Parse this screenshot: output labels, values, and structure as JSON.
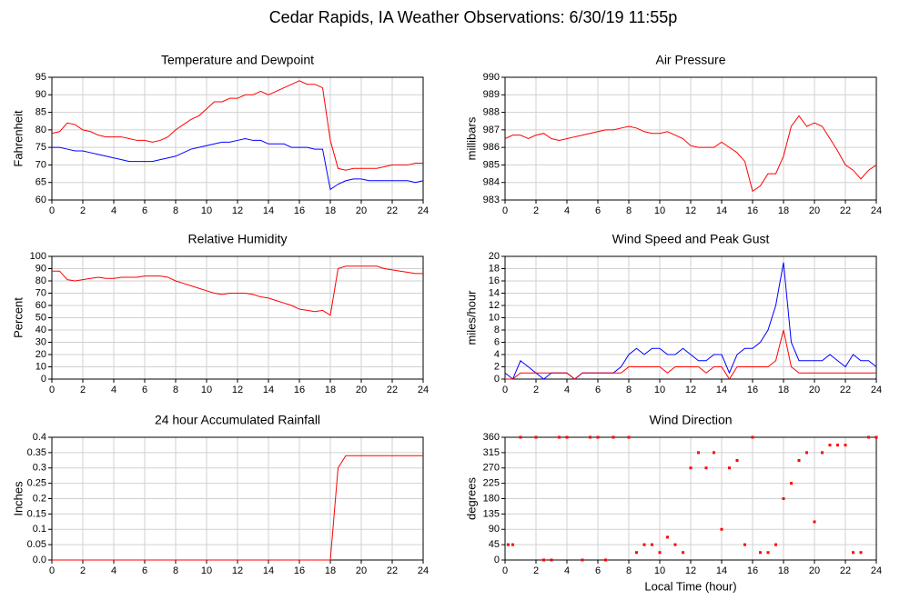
{
  "title": "Cedar Rapids, IA Weather Observations: 6/30/19 11:55p",
  "chart_data": [
    {
      "type": "line",
      "title": "Temperature and Dewpoint",
      "ylabel": "Fahrenheit",
      "x": [
        0,
        0.5,
        1,
        1.5,
        2,
        2.5,
        3,
        3.5,
        4,
        4.5,
        5,
        5.5,
        6,
        6.5,
        7,
        7.5,
        8,
        8.5,
        9,
        9.5,
        10,
        10.5,
        11,
        11.5,
        12,
        12.5,
        13,
        13.5,
        14,
        14.5,
        15,
        15.5,
        16,
        16.5,
        17,
        17.5,
        18,
        18.5,
        19,
        19.5,
        20,
        20.5,
        21,
        21.5,
        22,
        22.5,
        23,
        23.5,
        24
      ],
      "series": [
        {
          "color": "#ff0000",
          "values": [
            79,
            79.5,
            82,
            81.5,
            80,
            79.5,
            78.5,
            78,
            78,
            78,
            77.5,
            77,
            77,
            76.5,
            77,
            78,
            80,
            81.5,
            83,
            84,
            86,
            88,
            88,
            89,
            89,
            90,
            90,
            91,
            90,
            91,
            92,
            93,
            94,
            93,
            93,
            92,
            77,
            69,
            68.5,
            69,
            69,
            69,
            69,
            69.5,
            70,
            70,
            70,
            70.5,
            70.5
          ]
        },
        {
          "color": "#0000ff",
          "values": [
            75,
            75,
            74.5,
            74,
            74,
            73.5,
            73,
            72.5,
            72,
            71.5,
            71,
            71,
            71,
            71,
            71.5,
            72,
            72.5,
            73.5,
            74.5,
            75,
            75.5,
            76,
            76.5,
            76.5,
            77,
            77.5,
            77,
            77,
            76,
            76,
            76,
            75,
            75,
            75,
            74.5,
            74.5,
            63,
            64.5,
            65.5,
            66,
            66,
            65.5,
            65.5,
            65.5,
            65.5,
            65.5,
            65.5,
            65,
            65.5
          ]
        }
      ],
      "xlim": [
        0,
        24
      ],
      "xticks": [
        0,
        2,
        4,
        6,
        8,
        10,
        12,
        14,
        16,
        18,
        20,
        22,
        24
      ],
      "ylim": [
        60,
        95
      ],
      "yticks": [
        60,
        65,
        70,
        75,
        80,
        85,
        90,
        95
      ],
      "grid": true
    },
    {
      "type": "line",
      "title": "Air Pressure",
      "ylabel": "millibars",
      "x": [
        0,
        0.5,
        1,
        1.5,
        2,
        2.5,
        3,
        3.5,
        4,
        4.5,
        5,
        5.5,
        6,
        6.5,
        7,
        7.5,
        8,
        8.5,
        9,
        9.5,
        10,
        10.5,
        11,
        11.5,
        12,
        12.5,
        13,
        13.5,
        14,
        14.5,
        15,
        15.5,
        16,
        16.5,
        17,
        17.5,
        18,
        18.5,
        19,
        19.5,
        20,
        20.5,
        21,
        21.5,
        22,
        22.5,
        23,
        23.5,
        24
      ],
      "series": [
        {
          "color": "#ff0000",
          "values": [
            986.5,
            986.7,
            986.7,
            986.5,
            986.7,
            986.8,
            986.5,
            986.4,
            986.5,
            986.6,
            986.7,
            986.8,
            986.9,
            987,
            987,
            987.1,
            987.2,
            987.1,
            986.9,
            986.8,
            986.8,
            986.9,
            986.7,
            986.5,
            986.1,
            986,
            986,
            986,
            986.3,
            986,
            985.7,
            985.2,
            983.5,
            983.8,
            984.5,
            984.5,
            985.5,
            987.2,
            987.8,
            987.2,
            987.4,
            987.2,
            986.5,
            985.8,
            985,
            984.7,
            984.2,
            984.7,
            985
          ]
        }
      ],
      "xlim": [
        0,
        24
      ],
      "xticks": [
        0,
        2,
        4,
        6,
        8,
        10,
        12,
        14,
        16,
        18,
        20,
        22,
        24
      ],
      "ylim": [
        983,
        990
      ],
      "yticks": [
        983,
        984,
        985,
        986,
        987,
        988,
        989,
        990
      ],
      "grid": true
    },
    {
      "type": "line",
      "title": "Relative Humidity",
      "ylabel": "Percent",
      "x": [
        0,
        0.5,
        1,
        1.5,
        2,
        2.5,
        3,
        3.5,
        4,
        4.5,
        5,
        5.5,
        6,
        6.5,
        7,
        7.5,
        8,
        8.5,
        9,
        9.5,
        10,
        10.5,
        11,
        11.5,
        12,
        12.5,
        13,
        13.5,
        14,
        14.5,
        15,
        15.5,
        16,
        16.5,
        17,
        17.5,
        18,
        18.5,
        19,
        19.5,
        20,
        20.5,
        21,
        21.5,
        22,
        22.5,
        23,
        23.5,
        24
      ],
      "series": [
        {
          "color": "#ff0000",
          "values": [
            88,
            88,
            81,
            80,
            81,
            82,
            83,
            82,
            82,
            83,
            83,
            83,
            84,
            84,
            84,
            83,
            80,
            78,
            76,
            74,
            72,
            70,
            69,
            70,
            70,
            70,
            69,
            67,
            66,
            64,
            62,
            60,
            57,
            56,
            55,
            56,
            52,
            90,
            92,
            92,
            92,
            92,
            92,
            90,
            89,
            88,
            87,
            86,
            86
          ]
        }
      ],
      "xlim": [
        0,
        24
      ],
      "xticks": [
        0,
        2,
        4,
        6,
        8,
        10,
        12,
        14,
        16,
        18,
        20,
        22,
        24
      ],
      "ylim": [
        0,
        100
      ],
      "yticks": [
        0,
        10,
        20,
        30,
        40,
        50,
        60,
        70,
        80,
        90,
        100
      ],
      "grid": true
    },
    {
      "type": "line",
      "title": "Wind Speed and Peak Gust",
      "ylabel": "miles/hour",
      "x": [
        0,
        0.5,
        1,
        1.5,
        2,
        2.5,
        3,
        3.5,
        4,
        4.5,
        5,
        5.5,
        6,
        6.5,
        7,
        7.5,
        8,
        8.5,
        9,
        9.5,
        10,
        10.5,
        11,
        11.5,
        12,
        12.5,
        13,
        13.5,
        14,
        14.5,
        15,
        15.5,
        16,
        16.5,
        17,
        17.5,
        18,
        18.5,
        19,
        19.5,
        20,
        20.5,
        21,
        21.5,
        22,
        22.5,
        23,
        23.5,
        24
      ],
      "series": [
        {
          "color": "#0000ff",
          "values": [
            1,
            0,
            3,
            2,
            1,
            0,
            1,
            1,
            1,
            0,
            1,
            1,
            1,
            1,
            1,
            2,
            4,
            5,
            4,
            5,
            5,
            4,
            4,
            5,
            4,
            3,
            3,
            4,
            4,
            1,
            4,
            5,
            5,
            6,
            8,
            12,
            19,
            6,
            3,
            3,
            3,
            3,
            4,
            3,
            2,
            4,
            3,
            3,
            2
          ]
        },
        {
          "color": "#ff0000",
          "values": [
            0,
            0,
            1,
            1,
            1,
            1,
            1,
            1,
            1,
            0,
            1,
            1,
            1,
            1,
            1,
            1,
            2,
            2,
            2,
            2,
            2,
            1,
            2,
            2,
            2,
            2,
            1,
            2,
            2,
            0,
            2,
            2,
            2,
            2,
            2,
            3,
            8,
            2,
            1,
            1,
            1,
            1,
            1,
            1,
            1,
            1,
            1,
            1,
            1
          ]
        }
      ],
      "xlim": [
        0,
        24
      ],
      "xticks": [
        0,
        2,
        4,
        6,
        8,
        10,
        12,
        14,
        16,
        18,
        20,
        22,
        24
      ],
      "ylim": [
        0,
        20
      ],
      "yticks": [
        0,
        2,
        4,
        6,
        8,
        10,
        12,
        14,
        16,
        18,
        20
      ],
      "grid": true
    },
    {
      "type": "line",
      "title": "24 hour Accumulated Rainfall",
      "ylabel": "Inches",
      "x": [
        0,
        0.5,
        1,
        1.5,
        2,
        2.5,
        3,
        3.5,
        4,
        4.5,
        5,
        5.5,
        6,
        6.5,
        7,
        7.5,
        8,
        8.5,
        9,
        9.5,
        10,
        10.5,
        11,
        11.5,
        12,
        12.5,
        13,
        13.5,
        14,
        14.5,
        15,
        15.5,
        16,
        16.5,
        17,
        17.5,
        18,
        18.5,
        19,
        19.5,
        20,
        20.5,
        21,
        21.5,
        22,
        22.5,
        23,
        23.5,
        24
      ],
      "series": [
        {
          "color": "#ff0000",
          "values": [
            0,
            0,
            0,
            0,
            0,
            0,
            0,
            0,
            0,
            0,
            0,
            0,
            0,
            0,
            0,
            0,
            0,
            0,
            0,
            0,
            0,
            0,
            0,
            0,
            0,
            0,
            0,
            0,
            0,
            0,
            0,
            0,
            0,
            0,
            0,
            0,
            0,
            0.3,
            0.34,
            0.34,
            0.34,
            0.34,
            0.34,
            0.34,
            0.34,
            0.34,
            0.34,
            0.34,
            0.34
          ]
        }
      ],
      "xlim": [
        0,
        24
      ],
      "xticks": [
        0,
        2,
        4,
        6,
        8,
        10,
        12,
        14,
        16,
        18,
        20,
        22,
        24
      ],
      "ylim": [
        0,
        0.4
      ],
      "yticks": [
        {
          "value": 0,
          "label": "0.0"
        },
        0.05,
        0.1,
        0.15,
        0.2,
        0.25,
        0.3,
        0.35,
        0.4
      ],
      "grid": true
    },
    {
      "type": "scatter",
      "title": "Wind Direction",
      "ylabel": "degrees",
      "xlabel": "Local Time (hour)",
      "x": [
        0.2,
        0.5,
        1,
        2,
        2.5,
        3,
        3.5,
        4,
        5,
        5.5,
        6,
        6.5,
        7,
        8,
        8.5,
        9,
        9.5,
        10,
        10.5,
        11,
        11.5,
        12,
        12.5,
        13,
        13.5,
        14,
        14.5,
        15,
        15.5,
        16,
        16.5,
        17,
        17.5,
        18,
        18.5,
        19,
        19.5,
        20,
        20.5,
        21,
        21.5,
        22,
        22.5,
        23,
        23.5,
        24
      ],
      "series": [
        {
          "color": "#ff0000",
          "values": [
            45,
            45,
            360,
            360,
            0,
            0,
            360,
            360,
            0,
            360,
            360,
            0,
            360,
            360,
            22,
            45,
            45,
            22,
            67,
            45,
            22,
            270,
            315,
            270,
            315,
            90,
            270,
            292,
            45,
            360,
            22,
            22,
            45,
            180,
            225,
            292,
            315,
            112,
            315,
            337,
            337,
            337,
            22,
            22,
            360,
            360
          ]
        }
      ],
      "xlim": [
        0,
        24
      ],
      "xticks": [
        0,
        2,
        4,
        6,
        8,
        10,
        12,
        14,
        16,
        18,
        20,
        22,
        24
      ],
      "ylim": [
        0,
        360
      ],
      "yticks": [
        0,
        45,
        90,
        135,
        180,
        225,
        270,
        315,
        360
      ],
      "grid": true
    }
  ]
}
